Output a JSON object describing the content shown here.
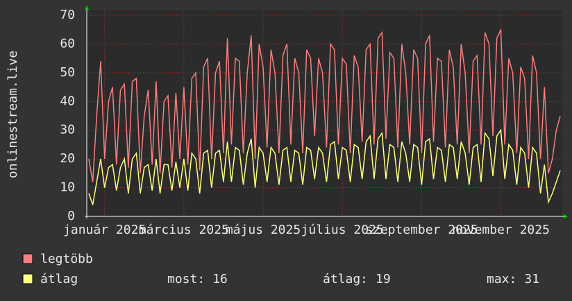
{
  "chart_data": {
    "type": "line",
    "y_label": "onlinestream.live",
    "categories": [
      null,
      null,
      null,
      null,
      "január 2025",
      null,
      null,
      null,
      null,
      null,
      null,
      null,
      null,
      null,
      null,
      null,
      null,
      null,
      null,
      null,
      null,
      null,
      null,
      null,
      "március 2025",
      null,
      null,
      null,
      null,
      null,
      null,
      null,
      null,
      null,
      null,
      null,
      null,
      null,
      null,
      null,
      null,
      null,
      null,
      null,
      "május 2025",
      null,
      null,
      null,
      null,
      null,
      null,
      null,
      null,
      null,
      null,
      null,
      null,
      null,
      null,
      null,
      null,
      null,
      null,
      null,
      "július 2025",
      null,
      null,
      null,
      null,
      null,
      null,
      null,
      null,
      null,
      null,
      null,
      null,
      null,
      null,
      null,
      null,
      null,
      null,
      null,
      "szeptember 2025",
      null,
      null,
      null,
      null,
      null,
      null,
      null,
      null,
      null,
      null,
      null,
      null,
      null,
      null,
      null,
      null,
      null,
      null,
      null,
      "november 2025",
      null,
      null,
      null,
      null,
      null,
      null,
      null,
      null,
      null,
      null,
      null,
      null,
      null,
      null,
      null
    ],
    "series": [
      {
        "name": "legtöbb",
        "color": "#f87f7f",
        "values": [
          20,
          12,
          35,
          54,
          20,
          40,
          45,
          18,
          44,
          46,
          17,
          47,
          48,
          15,
          35,
          44,
          18,
          47,
          15,
          40,
          42,
          17,
          43,
          20,
          45,
          18,
          48,
          50,
          16,
          52,
          55,
          20,
          50,
          54,
          22,
          62,
          25,
          55,
          54,
          22,
          50,
          63,
          20,
          60,
          52,
          24,
          58,
          50,
          22,
          56,
          60,
          25,
          55,
          50,
          22,
          58,
          55,
          28,
          55,
          50,
          24,
          60,
          58,
          25,
          55,
          53,
          22,
          56,
          52,
          26,
          58,
          60,
          25,
          62,
          64,
          27,
          57,
          55,
          24,
          60,
          50,
          25,
          58,
          55,
          22,
          60,
          63,
          26,
          55,
          54,
          24,
          58,
          52,
          25,
          60,
          50,
          22,
          54,
          56,
          25,
          64,
          60,
          28,
          62,
          65,
          25,
          55,
          50,
          22,
          52,
          48,
          20,
          56,
          50,
          20,
          45,
          15,
          20,
          30,
          35
        ]
      },
      {
        "name": "átlag",
        "color": "#ffff80",
        "values": [
          8,
          4,
          12,
          20,
          10,
          17,
          18,
          9,
          17,
          20,
          8,
          20,
          22,
          8,
          17,
          18,
          9,
          20,
          8,
          18,
          18,
          9,
          19,
          10,
          20,
          9,
          22,
          20,
          8,
          22,
          23,
          10,
          22,
          23,
          12,
          26,
          12,
          24,
          23,
          11,
          22,
          27,
          10,
          24,
          22,
          12,
          24,
          22,
          11,
          23,
          24,
          12,
          23,
          22,
          11,
          24,
          23,
          13,
          24,
          22,
          12,
          25,
          26,
          13,
          24,
          23,
          12,
          25,
          24,
          13,
          26,
          28,
          13,
          27,
          29,
          13,
          25,
          24,
          12,
          26,
          22,
          12,
          25,
          24,
          11,
          26,
          27,
          13,
          24,
          23,
          12,
          25,
          24,
          13,
          26,
          22,
          11,
          24,
          25,
          12,
          29,
          27,
          14,
          28,
          30,
          13,
          25,
          23,
          11,
          24,
          22,
          10,
          24,
          22,
          8,
          18,
          5,
          8,
          12,
          16
        ]
      }
    ],
    "stats": [
      {
        "label": "most:",
        "value": 16
      },
      {
        "label": "átlag:",
        "value": 19
      },
      {
        "label": "max:",
        "value": 31
      }
    ],
    "ylim": [
      0,
      70
    ],
    "yticks": [
      0,
      10,
      20,
      30,
      40,
      50,
      60,
      70
    ],
    "grid": true
  }
}
